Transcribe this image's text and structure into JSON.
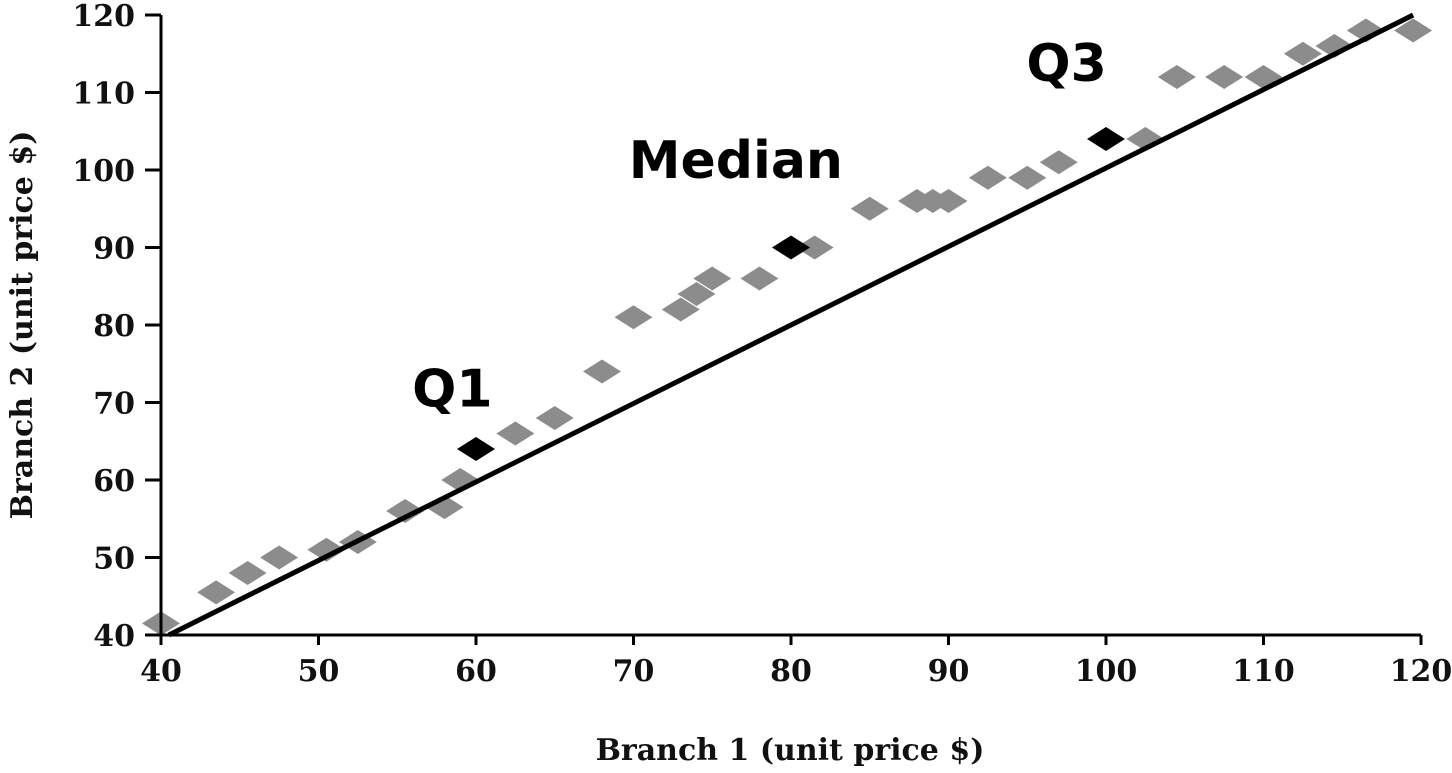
{
  "chart_data": {
    "type": "scatter",
    "title": "",
    "xlabel": "Branch 1 (unit price $)",
    "ylabel": "Branch 2 (unit price $)",
    "xlim": [
      40,
      120
    ],
    "ylim": [
      40,
      120
    ],
    "x_ticks": [
      40,
      50,
      60,
      70,
      80,
      90,
      100,
      110,
      120
    ],
    "y_ticks": [
      40,
      50,
      60,
      70,
      80,
      90,
      100,
      110,
      120
    ],
    "grid": false,
    "legend": "none",
    "reference_line": {
      "from": [
        40.5,
        40
      ],
      "to": [
        119.5,
        120
      ],
      "color": "#000000"
    },
    "series": [
      {
        "color": "#8c8c8c",
        "marker": "diamond",
        "points": [
          [
            40,
            41.5
          ],
          [
            43.5,
            45.5
          ],
          [
            45.5,
            48
          ],
          [
            47.5,
            50
          ],
          [
            50.5,
            51
          ],
          [
            52.5,
            52
          ],
          [
            55.5,
            56
          ],
          [
            58,
            56.5
          ],
          [
            59,
            60
          ],
          [
            62.5,
            66
          ],
          [
            65,
            68
          ],
          [
            68,
            74
          ],
          [
            70,
            81
          ],
          [
            73,
            82
          ],
          [
            74,
            84
          ],
          [
            75,
            86
          ],
          [
            78,
            86
          ],
          [
            81.5,
            90
          ],
          [
            85,
            95
          ],
          [
            88,
            96
          ],
          [
            89,
            96
          ],
          [
            90,
            96
          ],
          [
            92.5,
            99
          ],
          [
            95,
            99
          ],
          [
            97,
            101
          ],
          [
            102.5,
            104
          ],
          [
            104.5,
            112
          ],
          [
            107.5,
            112
          ],
          [
            110,
            112
          ],
          [
            112.5,
            115
          ],
          [
            114.5,
            116
          ],
          [
            116.5,
            118
          ],
          [
            119.5,
            118
          ]
        ]
      },
      {
        "color": "#000000",
        "marker": "diamond",
        "points": [
          [
            60,
            64
          ],
          [
            80,
            90
          ],
          [
            100,
            104
          ]
        ]
      }
    ],
    "annotations": [
      {
        "text": "Q1",
        "x": 58.5,
        "y": 69.5
      },
      {
        "text": "Median",
        "x": 76.5,
        "y": 99
      },
      {
        "text": "Q3",
        "x": 97.5,
        "y": 111.5
      }
    ]
  }
}
